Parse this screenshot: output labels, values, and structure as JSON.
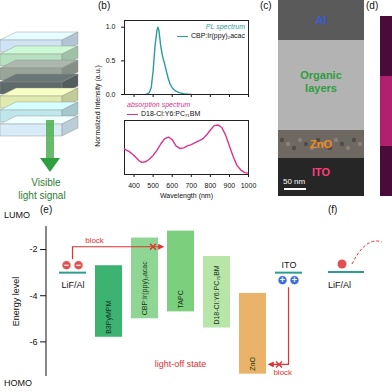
{
  "schematic": {
    "text": [
      "Visible",
      "light signal"
    ]
  },
  "chart_data": [
    {
      "type": "line",
      "panel_label": "(b)",
      "title": "PL spectrum",
      "ylabel": "Normalized Intensity (a.u.)",
      "x": [
        460,
        470,
        480,
        490,
        500,
        510,
        520,
        525,
        530,
        540,
        550,
        560,
        570,
        580,
        590,
        600,
        610,
        620,
        630,
        640,
        650,
        660,
        680,
        700
      ],
      "series": [
        {
          "name": "CBP:Ir(ppy)₂acac",
          "color": "#2a9d9a",
          "values": [
            0,
            0.01,
            0.03,
            0.1,
            0.35,
            0.72,
            0.95,
            1.0,
            0.96,
            0.72,
            0.56,
            0.46,
            0.34,
            0.23,
            0.15,
            0.1,
            0.07,
            0.05,
            0.035,
            0.025,
            0.018,
            0.012,
            0.006,
            0
          ]
        }
      ],
      "xlim": [
        350,
        1000
      ],
      "xticks": [
        400,
        500,
        600,
        700,
        800,
        900,
        1000
      ],
      "ylim": [
        0,
        1.1
      ],
      "yticks": [
        {
          "value": 0,
          "label": "0.0"
        },
        0.5,
        {
          "value": 1,
          "label": "1.0"
        }
      ],
      "tick_labels": "y",
      "legend": "top-right",
      "grid": false
    },
    {
      "type": "line",
      "title": "absorption spectrum",
      "xlabel": "Wavelength (nm)",
      "x": [
        350,
        375,
        400,
        425,
        440,
        460,
        480,
        500,
        520,
        540,
        560,
        580,
        600,
        620,
        640,
        660,
        680,
        700,
        720,
        740,
        760,
        780,
        800,
        820,
        840,
        860,
        880,
        900,
        920,
        940,
        960,
        980,
        1000
      ],
      "series": [
        {
          "name": "D18-Cl:Y6:PC₇₁BM",
          "color": "#d9338a",
          "values": [
            0.4,
            0.36,
            0.3,
            0.22,
            0.19,
            0.2,
            0.24,
            0.3,
            0.38,
            0.48,
            0.56,
            0.59,
            0.55,
            0.45,
            0.41,
            0.42,
            0.45,
            0.47,
            0.5,
            0.53,
            0.56,
            0.62,
            0.7,
            0.77,
            0.78,
            0.74,
            0.62,
            0.45,
            0.28,
            0.14,
            0.07,
            0.03,
            0.02
          ]
        }
      ],
      "xlim": [
        350,
        1000
      ],
      "xticks": [
        400,
        500,
        600,
        700,
        800,
        900,
        1000
      ],
      "ylim": [
        0,
        0.85
      ],
      "tick_labels": "x",
      "legend": "top-left",
      "grid": false
    }
  ],
  "tem_image": {
    "panel_label": "(c)",
    "layers": [
      {
        "name": "Al",
        "color": "#3b5bdb"
      },
      {
        "name": "Organic layers",
        "color": "#2e9e3e"
      },
      {
        "name": "ZnO",
        "color": "#f08c1c"
      },
      {
        "name": "ITO",
        "color": "#ff3b7a"
      }
    ],
    "scale_bar": "50 nm"
  },
  "panel_d": {
    "panel_label": "(d)"
  },
  "energy_diagram": {
    "type": "energy_levels",
    "panel_label": "(e)",
    "ylabel": "Energy level",
    "top_label": "LUMO",
    "bottom_label": "HOMO",
    "ylim": [
      -7.5,
      -1
    ],
    "yticks": [
      -2,
      -4,
      -6
    ],
    "layers": [
      {
        "name": "LiF/Al",
        "type": "electrode",
        "level": -3.0,
        "color": "#2a9d8f"
      },
      {
        "name": "B3PyMPM",
        "lumo": -2.7,
        "homo": -5.8,
        "color": "#3cb371"
      },
      {
        "name": "CBP:Ir(ppy)₂acac",
        "lumo": -1.5,
        "homo": -5.0,
        "color": "#8fd694"
      },
      {
        "name": "TAPC",
        "lumo": -1.2,
        "homo": -4.7,
        "color": "#7ccf7c"
      },
      {
        "name": "D18-Cl:Y6:PC₇₁BM",
        "lumo": -2.3,
        "homo": -5.4,
        "color": "#b8e6a8"
      },
      {
        "name": "ZnO",
        "lumo": -3.9,
        "homo": -7.4,
        "color": "#e9b36a"
      },
      {
        "name": "ITO",
        "type": "electrode",
        "level": -3.0,
        "color": "#2a9d8f"
      }
    ],
    "block_labels": [
      "block",
      "block"
    ],
    "state_label": "light-off state",
    "charges": {
      "electron": "−",
      "hole": "+"
    }
  },
  "panel_f": {
    "panel_label": "(f)",
    "text": "LiF/Al"
  }
}
